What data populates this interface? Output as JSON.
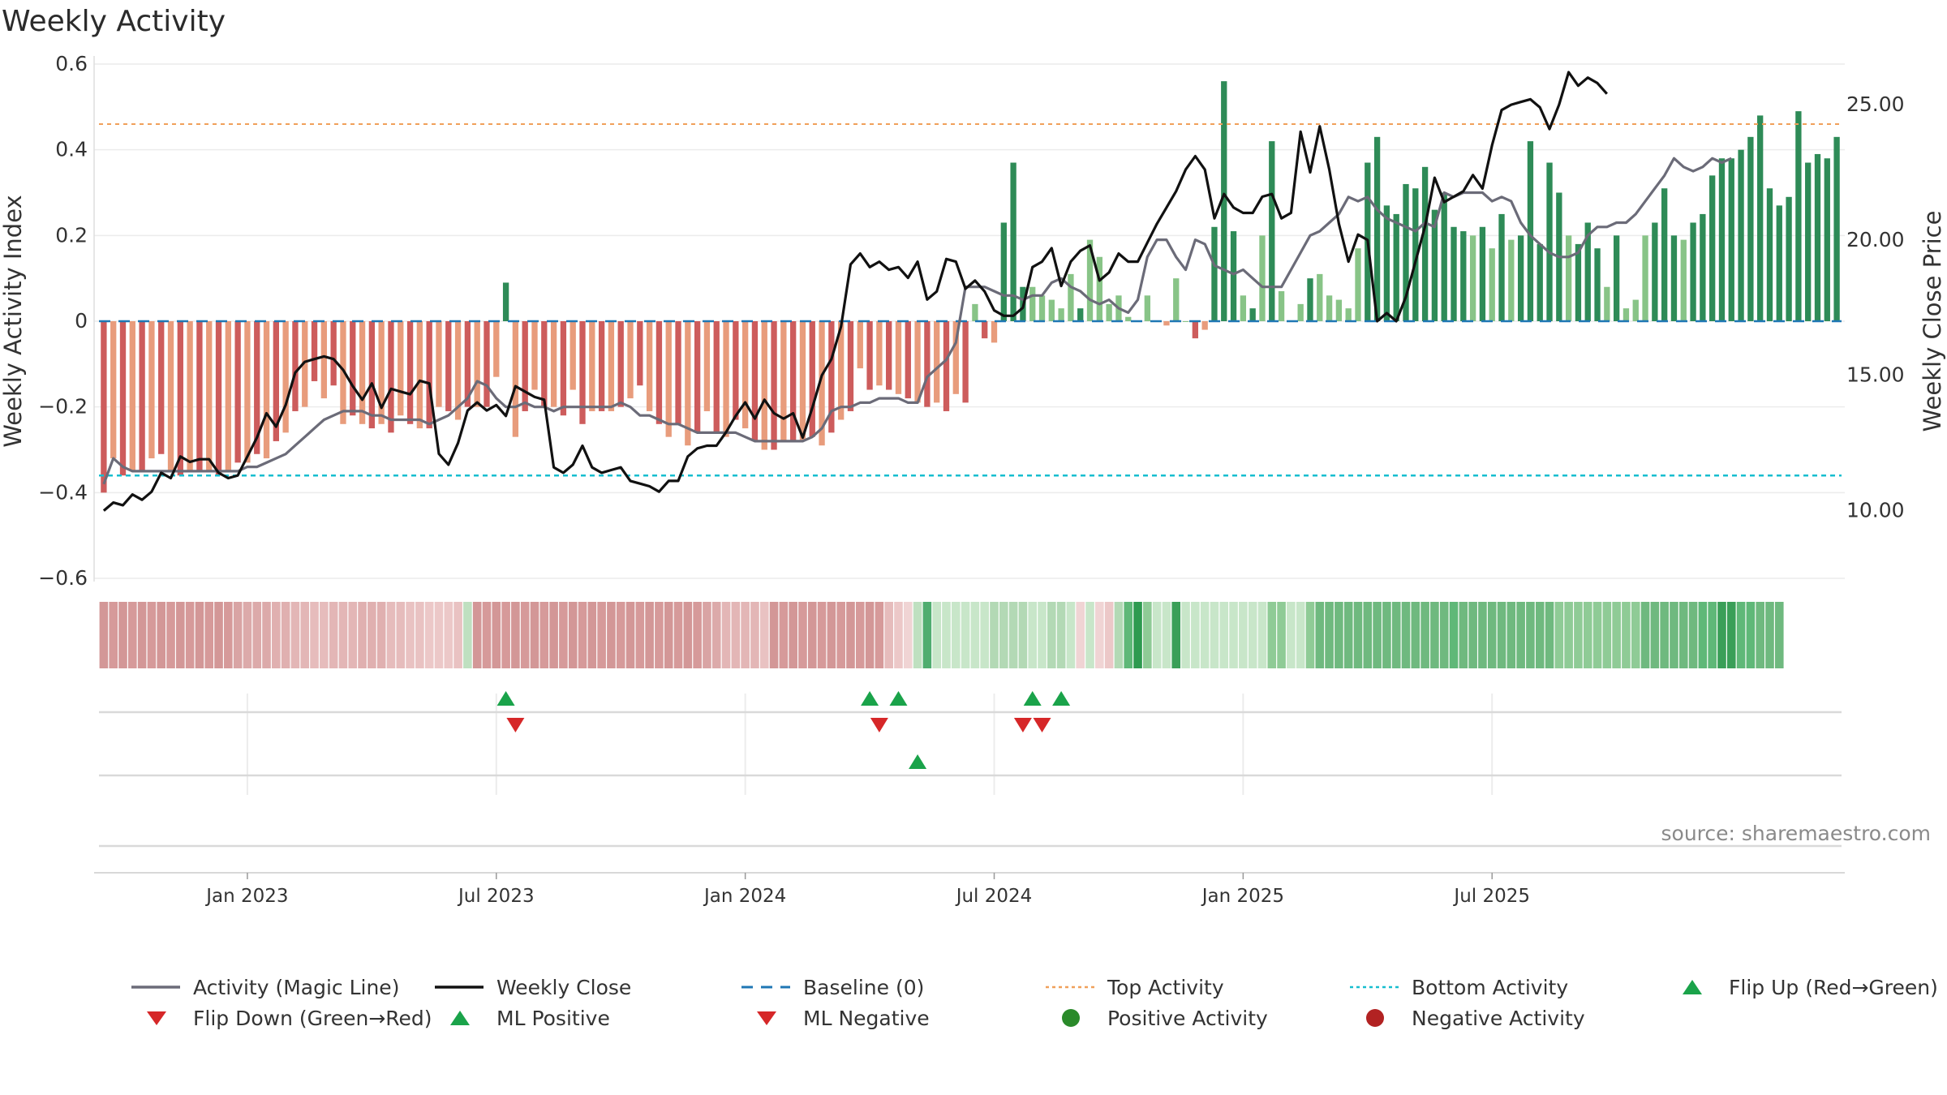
{
  "title": "Weekly Activity",
  "source": "source: sharemaestro.com",
  "colors": {
    "magic_line": "#6b6b78",
    "close": "#111111",
    "baseline": "#1f77b4",
    "top_line": "#f0a05a",
    "bottom_line": "#17becf",
    "pos_dark": "#2e8b57",
    "pos_light": "#88c487",
    "neg_dark": "#cd5c5c",
    "neg_light": "#e89c7c",
    "flip_up": "#1aa34a",
    "flip_down": "#d62728",
    "pos_dot": "#2a8a2a",
    "neg_dot": "#b22222"
  },
  "chart_data": {
    "type": "bar+line",
    "title": "Weekly Activity",
    "ylabel_left": "Weekly Activity Index",
    "ylabel_right": "Weekly Close Price",
    "ylim_left": [
      -0.6,
      0.6
    ],
    "ylim_right": [
      7.5,
      26.5
    ],
    "y_ticks_left": [
      0.6,
      0.4,
      0.2,
      0,
      -0.2,
      -0.4,
      -0.6
    ],
    "y_tick_labels_left": [
      "0.6",
      "0.4",
      "0.2",
      "0",
      "−0.2",
      "−0.4",
      "−0.6"
    ],
    "y_ticks_right": [
      25,
      20,
      15,
      10
    ],
    "y_tick_labels_right": [
      "25.00",
      "20.00",
      "15.00",
      "10.00"
    ],
    "x_ticks": [
      {
        "week": 15,
        "label": "Jan 2023"
      },
      {
        "week": 41,
        "label": "Jul 2023"
      },
      {
        "week": 67,
        "label": "Jan 2024"
      },
      {
        "week": 93,
        "label": "Jul 2024"
      },
      {
        "week": 119,
        "label": "Jan 2025"
      },
      {
        "week": 145,
        "label": "Jul 2025"
      }
    ],
    "top_activity": 0.46,
    "bottom_activity": -0.36,
    "baseline": 0,
    "activity": [
      -0.4,
      -0.32,
      -0.36,
      -0.35,
      -0.35,
      -0.32,
      -0.31,
      -0.35,
      -0.36,
      -0.35,
      -0.35,
      -0.35,
      -0.36,
      -0.35,
      -0.33,
      -0.33,
      -0.31,
      -0.32,
      -0.28,
      -0.26,
      -0.21,
      -0.2,
      -0.14,
      -0.18,
      -0.15,
      -0.24,
      -0.22,
      -0.24,
      -0.25,
      -0.24,
      -0.26,
      -0.22,
      -0.24,
      -0.25,
      -0.25,
      -0.2,
      -0.21,
      -0.23,
      -0.2,
      -0.2,
      -0.2,
      -0.13,
      0.09,
      -0.27,
      -0.21,
      -0.16,
      -0.2,
      -0.2,
      -0.22,
      -0.16,
      -0.24,
      -0.21,
      -0.21,
      -0.21,
      -0.2,
      -0.18,
      -0.15,
      -0.21,
      -0.24,
      -0.27,
      -0.24,
      -0.29,
      -0.26,
      -0.21,
      -0.26,
      -0.27,
      -0.23,
      -0.25,
      -0.28,
      -0.3,
      -0.3,
      -0.28,
      -0.28,
      -0.28,
      -0.27,
      -0.29,
      -0.26,
      -0.23,
      -0.21,
      -0.11,
      -0.16,
      -0.15,
      -0.16,
      -0.17,
      -0.18,
      -0.19,
      -0.2,
      -0.19,
      -0.21,
      -0.17,
      -0.19,
      0.04,
      -0.04,
      -0.05,
      0.23,
      0.37,
      0.08,
      0.08,
      0.06,
      0.05,
      0.03,
      0.11,
      0.03,
      0.19,
      0.15,
      0.04,
      0.06,
      0.01,
      0.0,
      0.06,
      0.0,
      -0.01,
      0.1,
      0.0,
      -0.04,
      -0.02,
      0.22,
      0.56,
      0.21,
      0.06,
      0.03,
      0.2,
      0.42,
      0.07,
      0.0,
      0.04,
      0.1,
      0.11,
      0.06,
      0.05,
      0.03,
      0.17,
      0.37,
      0.43,
      0.27,
      0.25,
      0.32,
      0.31,
      0.36,
      0.26,
      0.3,
      0.22,
      0.21,
      0.2,
      0.22,
      0.17,
      0.25,
      0.19,
      0.2,
      0.42,
      0.18,
      0.37,
      0.3,
      0.2,
      0.18,
      0.23,
      0.17,
      0.08,
      0.2,
      0.03,
      0.05,
      0.2,
      0.23,
      0.31,
      0.2,
      0.19,
      0.23,
      0.25,
      0.34,
      0.38,
      0.38,
      0.4,
      0.43,
      0.48,
      0.31,
      0.27,
      0.29,
      0.49,
      0.37,
      0.39,
      0.38,
      0.43
    ],
    "close": [
      10.0,
      10.3,
      10.2,
      10.6,
      10.4,
      10.7,
      11.4,
      11.2,
      12.0,
      11.8,
      11.9,
      11.9,
      11.4,
      11.2,
      11.3,
      12.0,
      12.7,
      13.6,
      13.1,
      13.9,
      15.1,
      15.5,
      15.6,
      15.7,
      15.6,
      15.2,
      14.6,
      14.1,
      14.7,
      13.8,
      14.5,
      14.4,
      14.3,
      14.8,
      14.7,
      12.1,
      11.7,
      12.5,
      13.7,
      14.0,
      13.7,
      13.9,
      13.5,
      14.6,
      14.4,
      14.2,
      14.1,
      11.6,
      11.4,
      11.7,
      12.4,
      11.6,
      11.4,
      11.5,
      11.6,
      11.1,
      11.0,
      10.9,
      10.7,
      11.1,
      11.1,
      12.0,
      12.3,
      12.4,
      12.4,
      12.9,
      13.5,
      14.0,
      13.4,
      14.1,
      13.6,
      13.4,
      13.6,
      12.7,
      13.8,
      15.0,
      15.6,
      16.8,
      19.1,
      19.5,
      19.0,
      19.2,
      18.9,
      19.0,
      18.6,
      19.2,
      17.8,
      18.1,
      19.3,
      19.2,
      18.2,
      18.5,
      18.1,
      17.4,
      17.2,
      17.2,
      17.5,
      19.0,
      19.2,
      19.7,
      18.3,
      19.2,
      19.6,
      19.8,
      18.5,
      18.8,
      19.5,
      19.2,
      19.2,
      19.9,
      20.6,
      21.2,
      21.8,
      22.6,
      23.1,
      22.6,
      20.8,
      21.7,
      21.2,
      21.0,
      21.0,
      21.6,
      21.7,
      20.8,
      21.0,
      24.0,
      22.5,
      24.2,
      22.6,
      20.6,
      19.2,
      20.2,
      20.0,
      17.0,
      17.3,
      17.0,
      17.9,
      19.2,
      20.5,
      22.3,
      21.4,
      21.6,
      21.8,
      22.4,
      21.9,
      23.5,
      24.8,
      25.0,
      25.1,
      25.2,
      24.9,
      24.1,
      25.0,
      26.2,
      25.7,
      26.0,
      25.8,
      25.4
    ],
    "magic_line": [
      -0.38,
      -0.32,
      -0.34,
      -0.35,
      -0.35,
      -0.35,
      -0.35,
      -0.35,
      -0.35,
      -0.35,
      -0.35,
      -0.35,
      -0.35,
      -0.35,
      -0.35,
      -0.34,
      -0.34,
      -0.33,
      -0.32,
      -0.31,
      -0.29,
      -0.27,
      -0.25,
      -0.23,
      -0.22,
      -0.21,
      -0.21,
      -0.21,
      -0.22,
      -0.22,
      -0.23,
      -0.23,
      -0.23,
      -0.23,
      -0.24,
      -0.23,
      -0.22,
      -0.2,
      -0.18,
      -0.14,
      -0.15,
      -0.18,
      -0.2,
      -0.2,
      -0.19,
      -0.2,
      -0.2,
      -0.21,
      -0.2,
      -0.2,
      -0.2,
      -0.2,
      -0.2,
      -0.2,
      -0.19,
      -0.2,
      -0.22,
      -0.22,
      -0.23,
      -0.24,
      -0.24,
      -0.25,
      -0.26,
      -0.26,
      -0.26,
      -0.26,
      -0.26,
      -0.27,
      -0.28,
      -0.28,
      -0.28,
      -0.28,
      -0.28,
      -0.28,
      -0.27,
      -0.25,
      -0.21,
      -0.2,
      -0.2,
      -0.19,
      -0.19,
      -0.18,
      -0.18,
      -0.18,
      -0.19,
      -0.19,
      -0.13,
      -0.11,
      -0.09,
      -0.05,
      0.08,
      0.08,
      0.08,
      0.07,
      0.06,
      0.06,
      0.05,
      0.06,
      0.06,
      0.09,
      0.1,
      0.08,
      0.07,
      0.05,
      0.04,
      0.05,
      0.03,
      0.02,
      0.05,
      0.15,
      0.19,
      0.19,
      0.15,
      0.12,
      0.19,
      0.18,
      0.13,
      0.12,
      0.11,
      0.12,
      0.1,
      0.08,
      0.08,
      0.08,
      0.12,
      0.16,
      0.2,
      0.21,
      0.23,
      0.25,
      0.29,
      0.28,
      0.29,
      0.26,
      0.24,
      0.23,
      0.22,
      0.21,
      0.23,
      0.22,
      0.3,
      0.29,
      0.3,
      0.3,
      0.3,
      0.28,
      0.29,
      0.28,
      0.23,
      0.2,
      0.18,
      0.16,
      0.15,
      0.15,
      0.16,
      0.2,
      0.22,
      0.22,
      0.23,
      0.23,
      0.25,
      0.28,
      0.31,
      0.34,
      0.38,
      0.36,
      0.35,
      0.36,
      0.38,
      0.37,
      0.38
    ]
  },
  "strip_colors": [
    "#d39797",
    "#d69a9a",
    "#d39797",
    "#d69a9a",
    "#d39797",
    "#d69a9a",
    "#d39797",
    "#d69a9a",
    "#d39797",
    "#d69a9a",
    "#d39797",
    "#d69a9a",
    "#d39797",
    "#d69a9a",
    "#d9a4a4",
    "#dcaaaa",
    "#dcaaaa",
    "#dcaaaa",
    "#e0b0b0",
    "#e0b0b0",
    "#e3b6b6",
    "#e3b6b6",
    "#e6bcbc",
    "#e6bcbc",
    "#e3b6b6",
    "#e3b6b6",
    "#e3b6b6",
    "#e0b0b0",
    "#e0b0b0",
    "#e0b0b0",
    "#e6bcbc",
    "#e6bcbc",
    "#e9c2c2",
    "#e9c2c2",
    "#ecc8c8",
    "#ecc8c8",
    "#ecc8c8",
    "#e9c2c2",
    "#bfe0c0",
    "#d39797",
    "#d69a9a",
    "#d39797",
    "#d69a9a",
    "#d39797",
    "#d69a9a",
    "#d39797",
    "#d69a9a",
    "#d39797",
    "#d69a9a",
    "#d39797",
    "#d69a9a",
    "#d39797",
    "#d69a9a",
    "#d39797",
    "#d69a9a",
    "#d39797",
    "#d69a9a",
    "#d39797",
    "#d69a9a",
    "#d39797",
    "#d69a9a",
    "#d39797",
    "#d69a9a",
    "#d9a4a4",
    "#dcaaaa",
    "#e3b6b6",
    "#e3b6b6",
    "#e3b6b6",
    "#e3b6b6",
    "#e9c2c2",
    "#d39797",
    "#d69a9a",
    "#d39797",
    "#d69a9a",
    "#d39797",
    "#d69a9a",
    "#d39797",
    "#d69a9a",
    "#d39797",
    "#d69a9a",
    "#d39797",
    "#d69a9a",
    "#e6bcbc",
    "#ecc8c8",
    "#f0d4d4",
    "#bfe0c0",
    "#4fad6f",
    "#c8e6c9",
    "#c8e6c9",
    "#c8e6c9",
    "#c8e6c9",
    "#c8e6c9",
    "#c8e6c9",
    "#b3d9b5",
    "#b3d9b5",
    "#b3d9b5",
    "#b3d9b5",
    "#c8e6c9",
    "#c8e6c9",
    "#b3d9b5",
    "#b3d9b5",
    "#c8e6c9",
    "#f0d4d4",
    "#c8e6c9",
    "#f0d4d4",
    "#ecc8c8",
    "#b3d9b5",
    "#5fb878",
    "#2e9a50",
    "#8fcb96",
    "#c8e6c9",
    "#c8e6c9",
    "#3a9f58",
    "#c8e6c9",
    "#c8e6c9",
    "#c8e6c9",
    "#c8e6c9",
    "#c8e6c9",
    "#c8e6c9",
    "#c8e6c9",
    "#c8e6c9",
    "#c8e6c9",
    "#8fcb96",
    "#8fcb96",
    "#c8e6c9",
    "#c8e6c9",
    "#8fcb96",
    "#6fb97f",
    "#6fb97f",
    "#6fb97f",
    "#6fb97f",
    "#6fb97f",
    "#6fb97f",
    "#6fb97f",
    "#6fb97f",
    "#6fb97f",
    "#6fb97f",
    "#6fb97f",
    "#6fb97f",
    "#6fb97f",
    "#6fb97f",
    "#5fb878",
    "#6fb97f",
    "#6fb97f",
    "#6fb97f",
    "#6fb97f",
    "#6fb97f",
    "#6fb97f",
    "#6fb97f",
    "#6fb97f",
    "#6fb97f",
    "#6fb97f",
    "#8fcb96",
    "#8fcb96",
    "#8fcb96",
    "#8fcb96",
    "#8fcb96",
    "#8fcb96",
    "#8fcb96",
    "#8fcb96",
    "#8fcb96",
    "#6fb97f",
    "#6fb97f",
    "#6fb97f",
    "#6fb97f",
    "#6fb97f",
    "#6fb97f",
    "#5fb878",
    "#5fb878",
    "#3a9f58",
    "#3a9f58",
    "#5fb878",
    "#5fb878",
    "#6fb97f",
    "#6fb97f",
    "#6fb97f"
  ],
  "markers": {
    "flip_up": [
      42,
      80,
      83,
      97,
      100
    ],
    "flip_down": [
      43,
      81,
      96,
      98
    ],
    "ml_positive": [
      85
    ]
  },
  "legend": [
    {
      "label": "Activity (Magic Line)",
      "symbol": "line",
      "color_key": "magic_line"
    },
    {
      "label": "Weekly Close",
      "symbol": "line",
      "color_key": "close"
    },
    {
      "label": "Baseline (0)",
      "symbol": "dash",
      "color_key": "baseline"
    },
    {
      "label": "Top Activity",
      "symbol": "dot-line",
      "color_key": "top_line"
    },
    {
      "label": "Bottom Activity",
      "symbol": "dot-line",
      "color_key": "bottom_line"
    },
    {
      "label": "Flip Up (Red→Green)",
      "symbol": "tri-up",
      "color_key": "flip_up"
    },
    {
      "label": "Flip Down (Green→Red)",
      "symbol": "tri-down",
      "color_key": "flip_down"
    },
    {
      "label": "ML Positive",
      "symbol": "tri-up",
      "color_key": "flip_up"
    },
    {
      "label": "ML Negative",
      "symbol": "tri-down",
      "color_key": "flip_down"
    },
    {
      "label": "Positive Activity",
      "symbol": "circle",
      "color_key": "pos_dot"
    },
    {
      "label": "Negative Activity",
      "symbol": "circle",
      "color_key": "neg_dot"
    }
  ]
}
